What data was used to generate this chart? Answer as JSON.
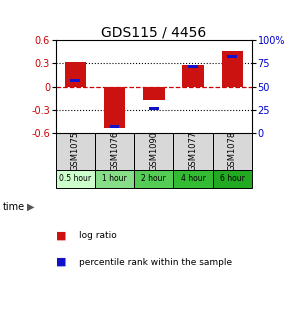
{
  "title": "GDS115 / 4456",
  "samples": [
    "GSM1075",
    "GSM1076",
    "GSM1090",
    "GSM1077",
    "GSM1078"
  ],
  "time_labels": [
    "0.5 hour",
    "1 hour",
    "2 hour",
    "4 hour",
    "6 hour"
  ],
  "time_colors": [
    "#ccffcc",
    "#88dd88",
    "#55cc55",
    "#33bb33",
    "#22aa22"
  ],
  "log_ratios": [
    0.32,
    -0.54,
    -0.18,
    0.28,
    0.46
  ],
  "percentile_ranks": [
    0.57,
    0.07,
    0.26,
    0.72,
    0.82
  ],
  "ylim": [
    -0.6,
    0.6
  ],
  "yticks_left": [
    -0.6,
    -0.3,
    0.0,
    0.3,
    0.6
  ],
  "yticks_right": [
    0,
    25,
    50,
    75,
    100
  ],
  "bar_color": "#cc1111",
  "pct_color": "#1111cc",
  "zero_line_color": "#cc0000",
  "dotted_color": "#000000",
  "bg_color": "#ffffff",
  "title_fontsize": 10,
  "tick_fontsize": 7,
  "legend_fontsize": 6.5,
  "bar_width": 0.55,
  "pct_bar_width": 0.25
}
